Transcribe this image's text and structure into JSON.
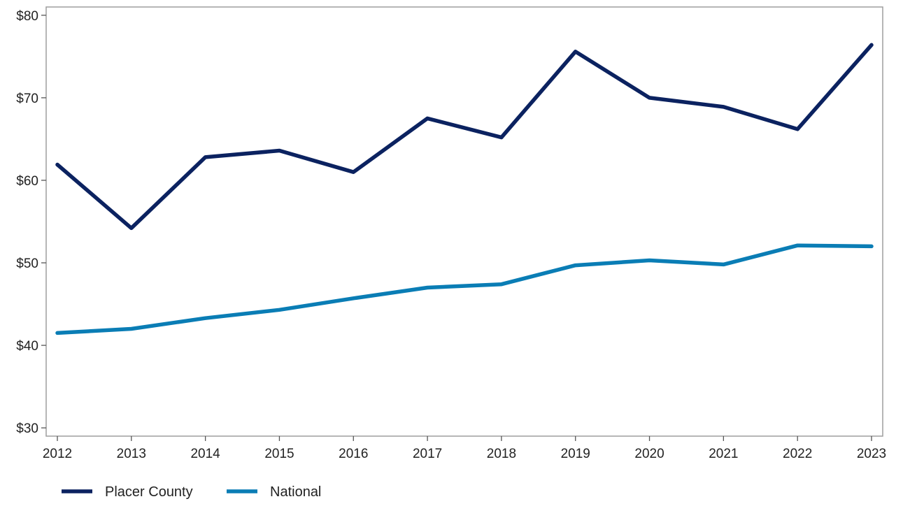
{
  "chart_data": {
    "type": "line",
    "title": "",
    "xlabel": "",
    "ylabel": "",
    "x": [
      2012,
      2013,
      2014,
      2015,
      2016,
      2017,
      2018,
      2019,
      2020,
      2021,
      2022,
      2023
    ],
    "x_tick_labels": [
      "2012",
      "2013",
      "2014",
      "2015",
      "2016",
      "2017",
      "2018",
      "2019",
      "2020",
      "2021",
      "2022",
      "2023"
    ],
    "ylim": [
      29,
      81
    ],
    "y_ticks": [
      30,
      40,
      50,
      60,
      70,
      80
    ],
    "y_tick_labels": [
      "$30",
      "$40",
      "$50",
      "$60",
      "$70",
      "$80"
    ],
    "grid": false,
    "legend_position": "bottom-left",
    "series": [
      {
        "name": "Placer County",
        "color": "#0b2260",
        "values": [
          61.9,
          54.2,
          62.8,
          63.6,
          61.0,
          67.5,
          65.2,
          75.6,
          70.0,
          68.9,
          66.2,
          76.4
        ]
      },
      {
        "name": "National",
        "color": "#0a7db5",
        "values": [
          41.5,
          42.0,
          43.3,
          44.3,
          45.7,
          47.0,
          47.4,
          49.7,
          50.3,
          49.8,
          52.1,
          52.0
        ]
      }
    ]
  }
}
